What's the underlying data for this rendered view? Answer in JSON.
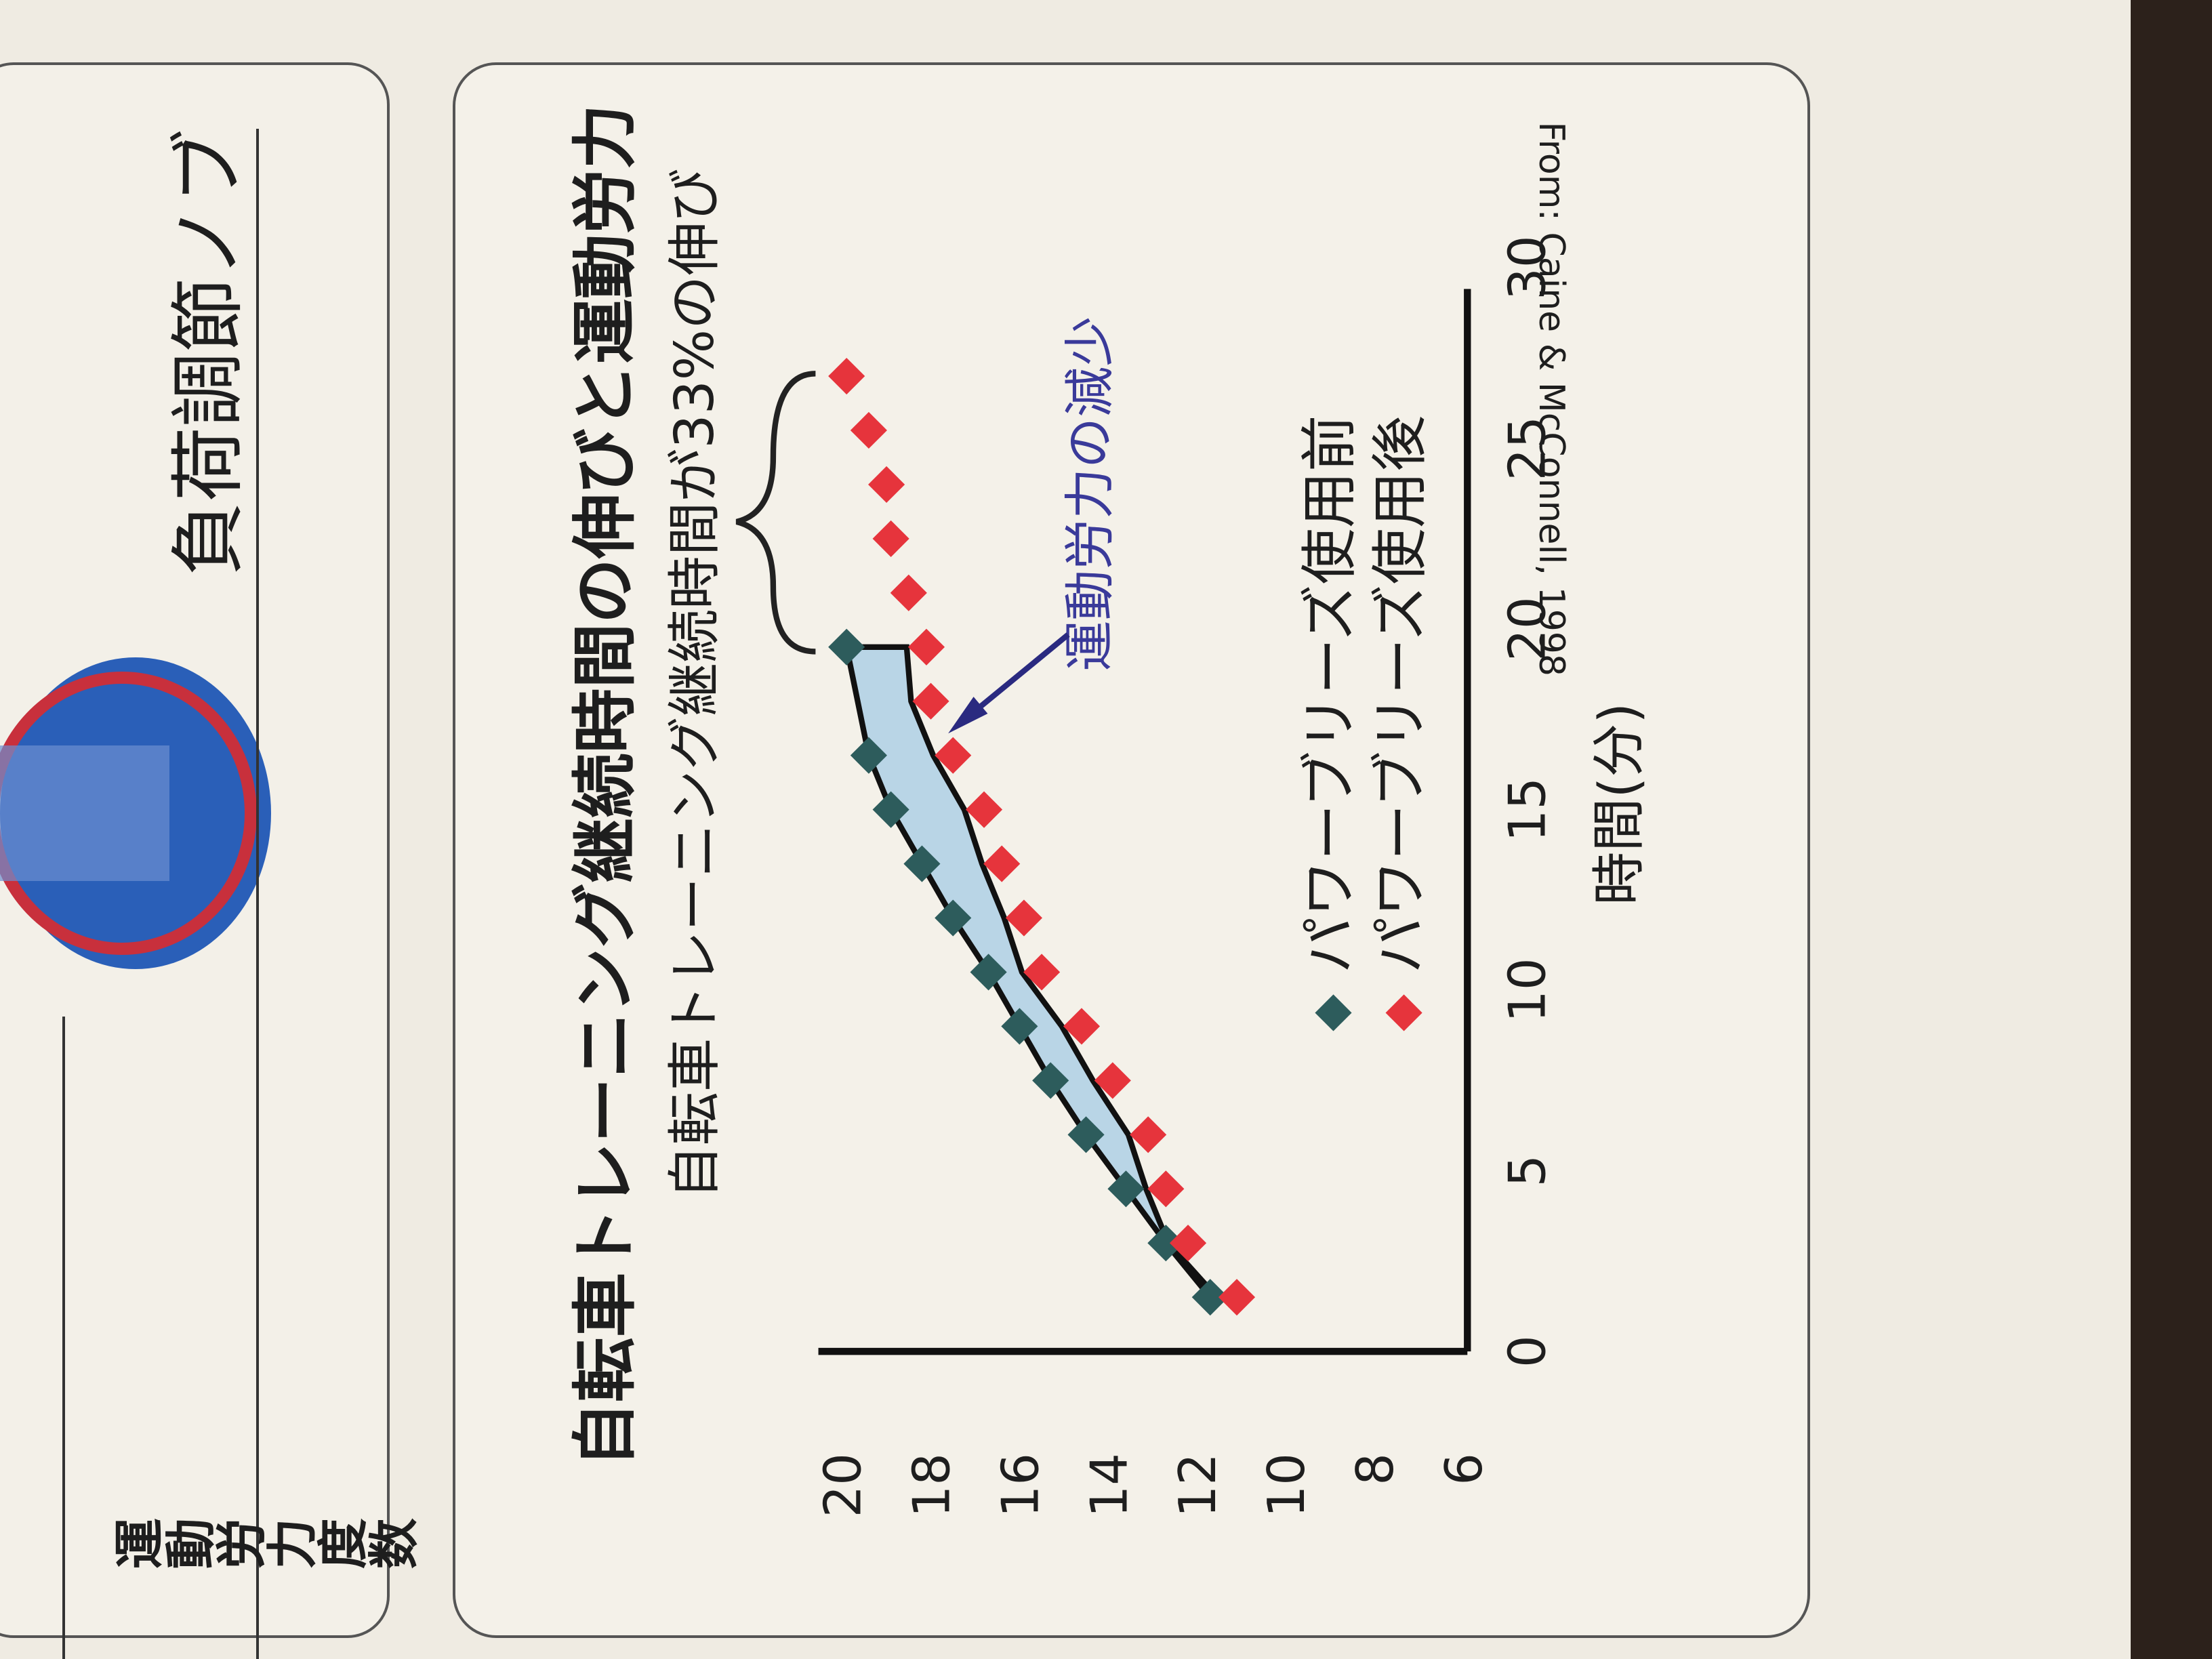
{
  "page_text": {
    "label": "負荷調節ノブ"
  },
  "chart_data": {
    "type": "scatter",
    "title": "自転車トレーニング継続時間の伸びと運動労力",
    "subtitle": "自転車トレーニング継続時間が33%の伸び",
    "annotation": "運動労力の減少",
    "source": "From: Caine & McConnell, 1998",
    "x_label": "時間(分)",
    "y_label": "運動労力度数",
    "xlim": [
      0,
      30
    ],
    "xticks": [
      0,
      5,
      10,
      15,
      20,
      25,
      30
    ],
    "ylim": [
      6,
      20
    ],
    "yticks": [
      6,
      8,
      10,
      12,
      14,
      16,
      18,
      20
    ],
    "series": [
      {
        "name": "パワーブリーズ使用前",
        "color": "#2d5c5c",
        "x": [
          1.5,
          3,
          4.5,
          6,
          7.5,
          9,
          10.5,
          12,
          13.5,
          15,
          16.5,
          19.5
        ],
        "values": [
          11.8,
          12.8,
          13.7,
          14.6,
          15.4,
          16.1,
          16.8,
          17.6,
          18.3,
          19.0,
          19.5,
          20.0
        ]
      },
      {
        "name": "パワーブリーズ使用後",
        "color": "#e6343c",
        "x": [
          1.5,
          3,
          4.5,
          6,
          7.5,
          9,
          10.5,
          12,
          13.5,
          15,
          16.5,
          18,
          19.5,
          21,
          22.5,
          24,
          25.5,
          27
        ],
        "values": [
          11.2,
          12.3,
          12.8,
          13.2,
          14.0,
          14.7,
          15.6,
          16.0,
          16.5,
          16.9,
          17.6,
          18.1,
          18.2,
          18.6,
          19.0,
          19.1,
          19.5,
          20.0
        ]
      }
    ],
    "area_color": "#b9d5e6"
  }
}
